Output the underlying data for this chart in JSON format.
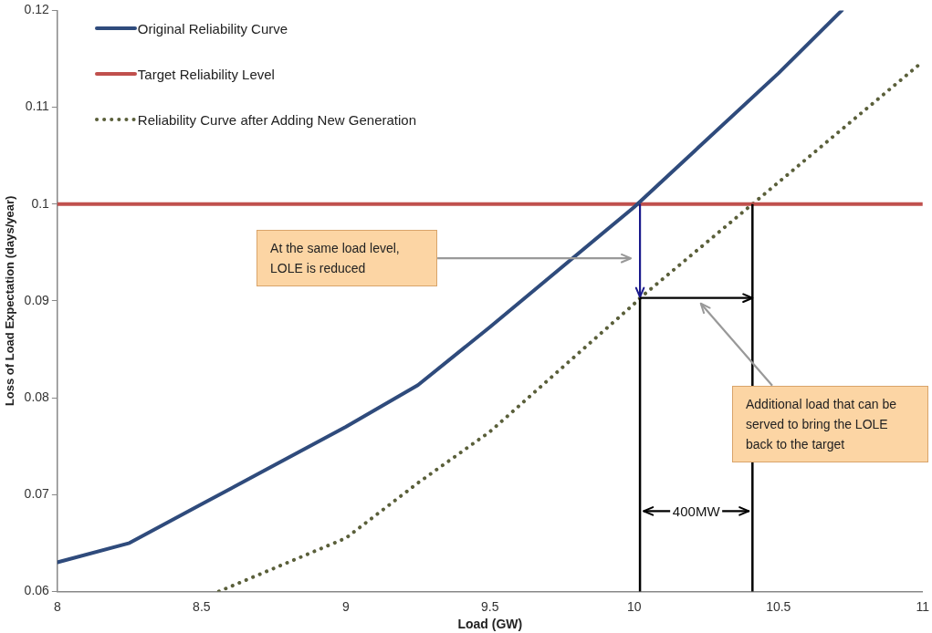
{
  "chart_data": {
    "type": "line",
    "xlabel": "Load (GW)",
    "ylabel": "Loss of Load Expectation (days/year)",
    "xlim": [
      8,
      11
    ],
    "xticks": [
      8,
      8.5,
      9,
      9.5,
      10,
      10.5,
      11
    ],
    "ylim": [
      0.06,
      0.12
    ],
    "yticks": [
      0.06,
      0.07,
      0.08,
      0.09,
      0.1,
      0.11,
      0.12
    ],
    "legend": "top left",
    "grid": false,
    "series": [
      {
        "name": "Original Reliability Curve",
        "color": "#2f4b7c",
        "line_style": "solid",
        "x": [
          8,
          8.25,
          8.5,
          9,
          9.25,
          9.5,
          10,
          10.5,
          10.72
        ],
        "values": [
          0.063,
          0.065,
          0.069,
          0.077,
          0.0813,
          0.0873,
          0.0997,
          0.1135,
          0.12
        ]
      },
      {
        "name": "Target Reliability Level",
        "color": "#c0504d",
        "line_style": "solid",
        "x": [
          8,
          11
        ],
        "values": [
          0.1,
          0.1
        ]
      },
      {
        "name": "Reliability Curve after Adding New Generation",
        "color": "#5a5f3a",
        "line_style": "dotted",
        "x": [
          8.56,
          9,
          9.25,
          9.5,
          10,
          10.02,
          10.41,
          11
        ],
        "values": [
          0.06,
          0.0655,
          0.0712,
          0.0765,
          0.0897,
          0.0903,
          0.1,
          0.1147
        ]
      }
    ],
    "ref_lines": [
      {
        "axis": "x",
        "value": 10.02,
        "color": "#000000"
      },
      {
        "axis": "x",
        "value": 10.41,
        "color": "#000000"
      }
    ],
    "annotations": [
      "At the same load level, LOLE is reduced",
      "Additional load that can be served to bring the LOLE back to the target",
      "400MW"
    ]
  }
}
